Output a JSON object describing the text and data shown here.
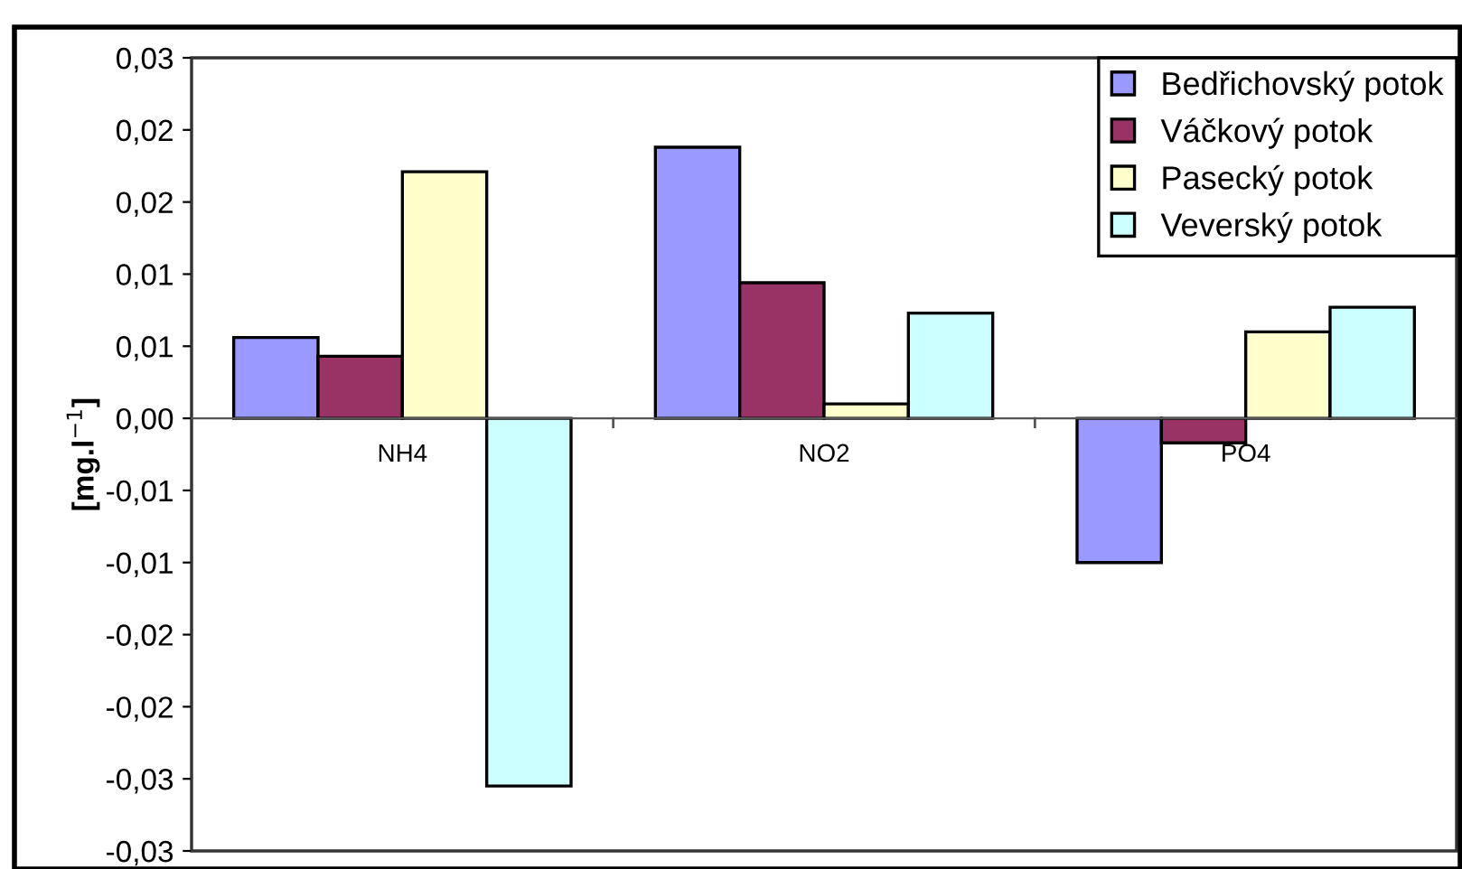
{
  "chart_data": {
    "type": "bar",
    "ylabel": "[mg.l$^{−1}$]",
    "categories": [
      "NH4",
      "NO2",
      "PO4"
    ],
    "series": [
      {
        "name": "Bedřichovský potok",
        "color": "#9999ff",
        "values": [
          0.0056,
          0.0188,
          -0.01
        ]
      },
      {
        "name": "Váčkový potok",
        "color": "#993366",
        "values": [
          0.0043,
          0.0094,
          -0.0017
        ]
      },
      {
        "name": "Pasecký potok",
        "color": "#ffffcc",
        "values": [
          0.0171,
          0.001,
          0.006
        ]
      },
      {
        "name": "Veverský potok",
        "color": "#ccffff",
        "values": [
          -0.0255,
          0.0073,
          0.0077
        ]
      }
    ],
    "ylim": [
      -0.03,
      0.025
    ],
    "yticks": [
      {
        "value": -0.03,
        "label": "-0,03"
      },
      {
        "value": -0.025,
        "label": "-0,03"
      },
      {
        "value": -0.02,
        "label": "-0,02"
      },
      {
        "value": -0.015,
        "label": "-0,02"
      },
      {
        "value": -0.01,
        "label": "-0,01"
      },
      {
        "value": -0.005,
        "label": "-0,01"
      },
      {
        "value": 0,
        "label": "0,00"
      },
      {
        "value": 0.005,
        "label": "0,01"
      },
      {
        "value": 0.01,
        "label": "0,01"
      },
      {
        "value": 0.015,
        "label": "0,02"
      },
      {
        "value": 0.02,
        "label": "0,02"
      },
      {
        "value": 0.025,
        "label": "0,03"
      }
    ],
    "grid": false,
    "legend": "top right"
  }
}
